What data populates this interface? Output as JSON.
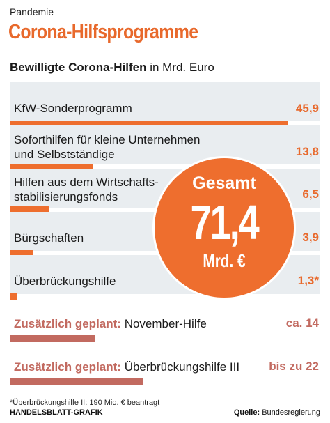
{
  "header": {
    "kicker": "Pandemie",
    "title": "Corona-Hilfsprogramme",
    "subtitle_bold": "Bewilligte Corona-Hilfen",
    "subtitle_rest": " in Mrd. Euro"
  },
  "chart_data": {
    "type": "bar",
    "orientation": "horizontal",
    "unit": "Mrd. Euro",
    "xlim": [
      0,
      22
    ],
    "categories": [
      "KfW-Sonderprogramm",
      "Soforthilfen für kleine Unternehmen und Selbstständige",
      "Hilfen aus dem Wirtschafts-stabilisierungsfonds",
      "Bürgschaften",
      "Überbrückungshilfe"
    ],
    "label_lines": [
      [
        "KfW-Sonderprogramm"
      ],
      [
        "Soforthilfen für kleine Unternehmen",
        "und Selbstständige"
      ],
      [
        "Hilfen aus dem Wirtschafts-",
        "stabilisierungsfonds"
      ],
      [
        "Bürgschaften"
      ],
      [
        "Überbrückungshilfe"
      ]
    ],
    "values": [
      45.9,
      13.8,
      6.5,
      3.9,
      1.3
    ],
    "value_labels": [
      "45,9",
      "13,8",
      "6,5",
      "3,9",
      "1,3*"
    ],
    "total_label": "Gesamt",
    "total_value": "71,4",
    "total_unit": "Mrd. €",
    "planned": [
      {
        "prefix": "Zusätzlich geplant:",
        "name": "November-Hilfe",
        "value": 14,
        "value_label": "ca. 14"
      },
      {
        "prefix": "Zusätzlich geplant:",
        "name": "Überbrückungshilfe III",
        "value": 22,
        "value_label": "bis zu 22"
      }
    ],
    "colors": {
      "bar": "#ee6e2e",
      "planned_bar": "#c26a60",
      "band": "#e9edf0",
      "accent": "#e8692c"
    }
  },
  "footer": {
    "footnote": "*Überbrückungshilfe II: 190 Mio. € beantragt",
    "credit": "HANDELSBLATT-GRAFIK",
    "source_label": "Quelle:",
    "source_value": " Bundesregierung"
  }
}
